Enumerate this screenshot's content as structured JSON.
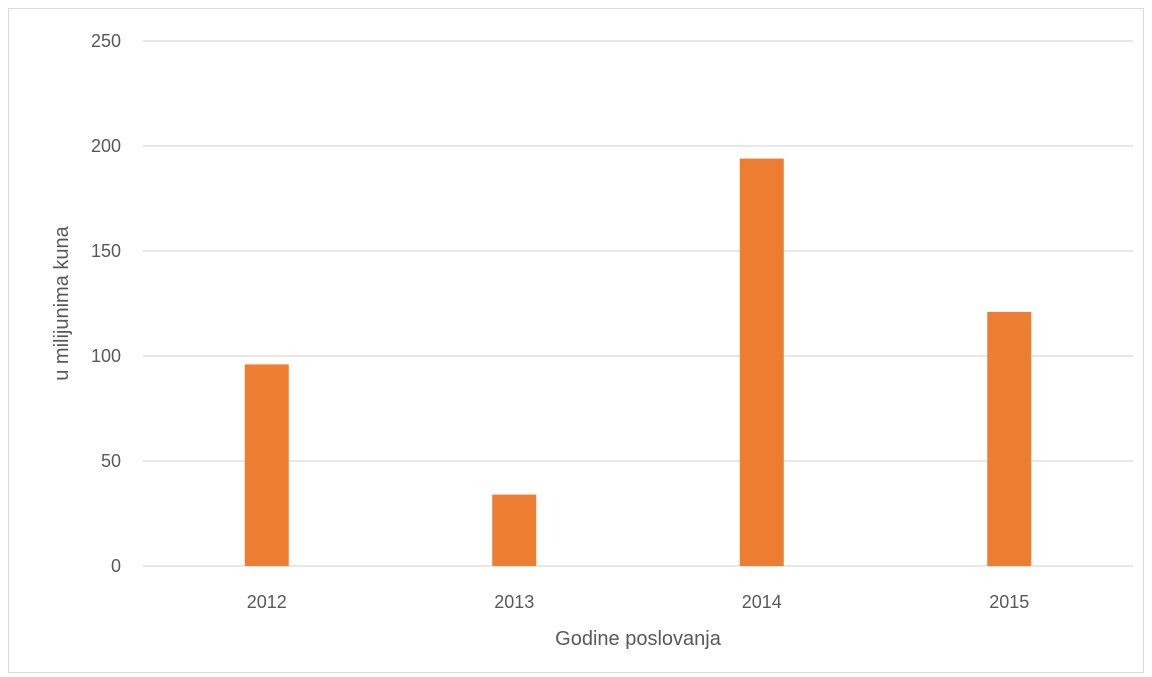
{
  "chart_data": {
    "type": "bar",
    "categories": [
      "2012",
      "2013",
      "2014",
      "2015"
    ],
    "values": [
      96,
      34,
      194,
      121
    ],
    "title": "",
    "xlabel": "Godine poslovanja",
    "ylabel": "u milijunima kuna",
    "ylim": [
      0,
      250
    ],
    "yticks": [
      "0",
      "50",
      "100",
      "150",
      "200",
      "250"
    ],
    "grid": true,
    "legend": "none",
    "colors": {
      "bar": "#ED7D31",
      "grid": "#d9d9d9",
      "axis": "#d9d9d9",
      "text": "#595959"
    }
  }
}
